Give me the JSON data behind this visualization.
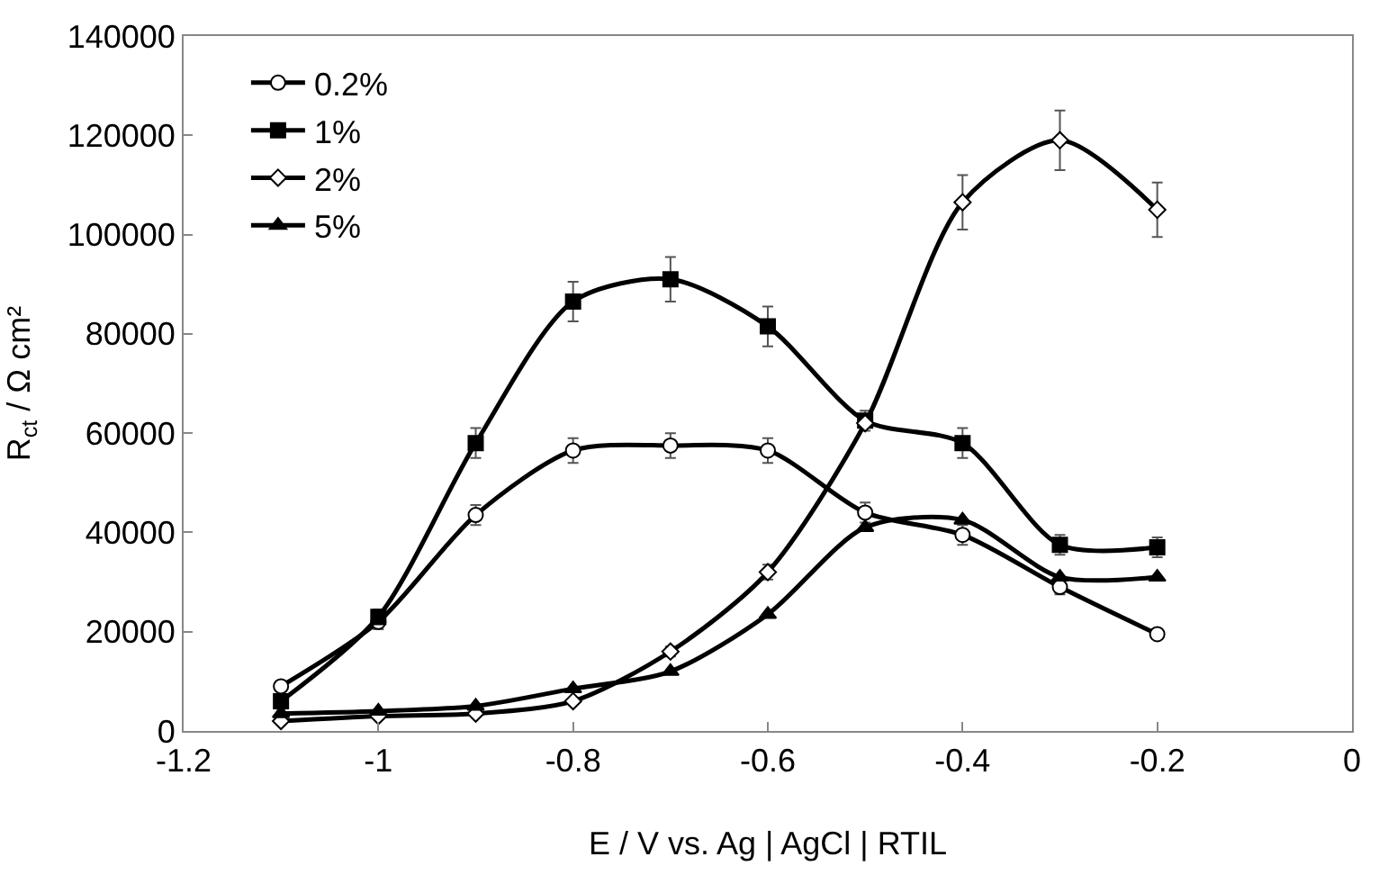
{
  "chart_data": {
    "type": "line",
    "xlabel": "E / V vs. Ag | AgCl | RTIL",
    "ylabel": "R$_{ct}$ / Ω cm²",
    "x": [
      -1.1,
      -1.0,
      -0.9,
      -0.8,
      -0.7,
      -0.6,
      -0.5,
      -0.4,
      -0.3,
      -0.2
    ],
    "xlim": [
      -1.2,
      0
    ],
    "xticks": [
      -1.2,
      -1,
      -0.8,
      -0.6,
      -0.4,
      -0.2,
      0
    ],
    "ylim": [
      0,
      140000
    ],
    "yticks": [
      0,
      20000,
      40000,
      60000,
      80000,
      100000,
      120000,
      140000
    ],
    "legend": "top left",
    "series": [
      {
        "name": "0.2%",
        "color": "#000000",
        "marker": "circle",
        "values": [
          9000,
          22000,
          43500,
          56500,
          57500,
          56500,
          44000,
          39500,
          29000,
          19500
        ],
        "errors": [
          1000,
          1500,
          2000,
          2500,
          2500,
          2500,
          2000,
          2000,
          1500,
          null
        ]
      },
      {
        "name": "1%",
        "color": "#000000",
        "marker": "square",
        "values": [
          6000,
          23000,
          58000,
          86500,
          91000,
          81500,
          62500,
          58000,
          37500,
          37000
        ],
        "errors": [
          1500,
          1500,
          3000,
          4000,
          4500,
          4000,
          2000,
          3000,
          2000,
          2000
        ]
      },
      {
        "name": "2%",
        "color": "#000000",
        "marker": "diamond",
        "values": [
          2000,
          3000,
          3500,
          6000,
          16000,
          32000,
          62000,
          106500,
          119000,
          105000
        ],
        "errors": [
          null,
          null,
          null,
          null,
          1000,
          1500,
          null,
          5500,
          6000,
          5500
        ]
      },
      {
        "name": "5%",
        "color": "#000000",
        "marker": "triangle",
        "values": [
          3500,
          4000,
          5000,
          8500,
          12000,
          23500,
          41000,
          42500,
          31000,
          31000
        ]
      }
    ]
  }
}
